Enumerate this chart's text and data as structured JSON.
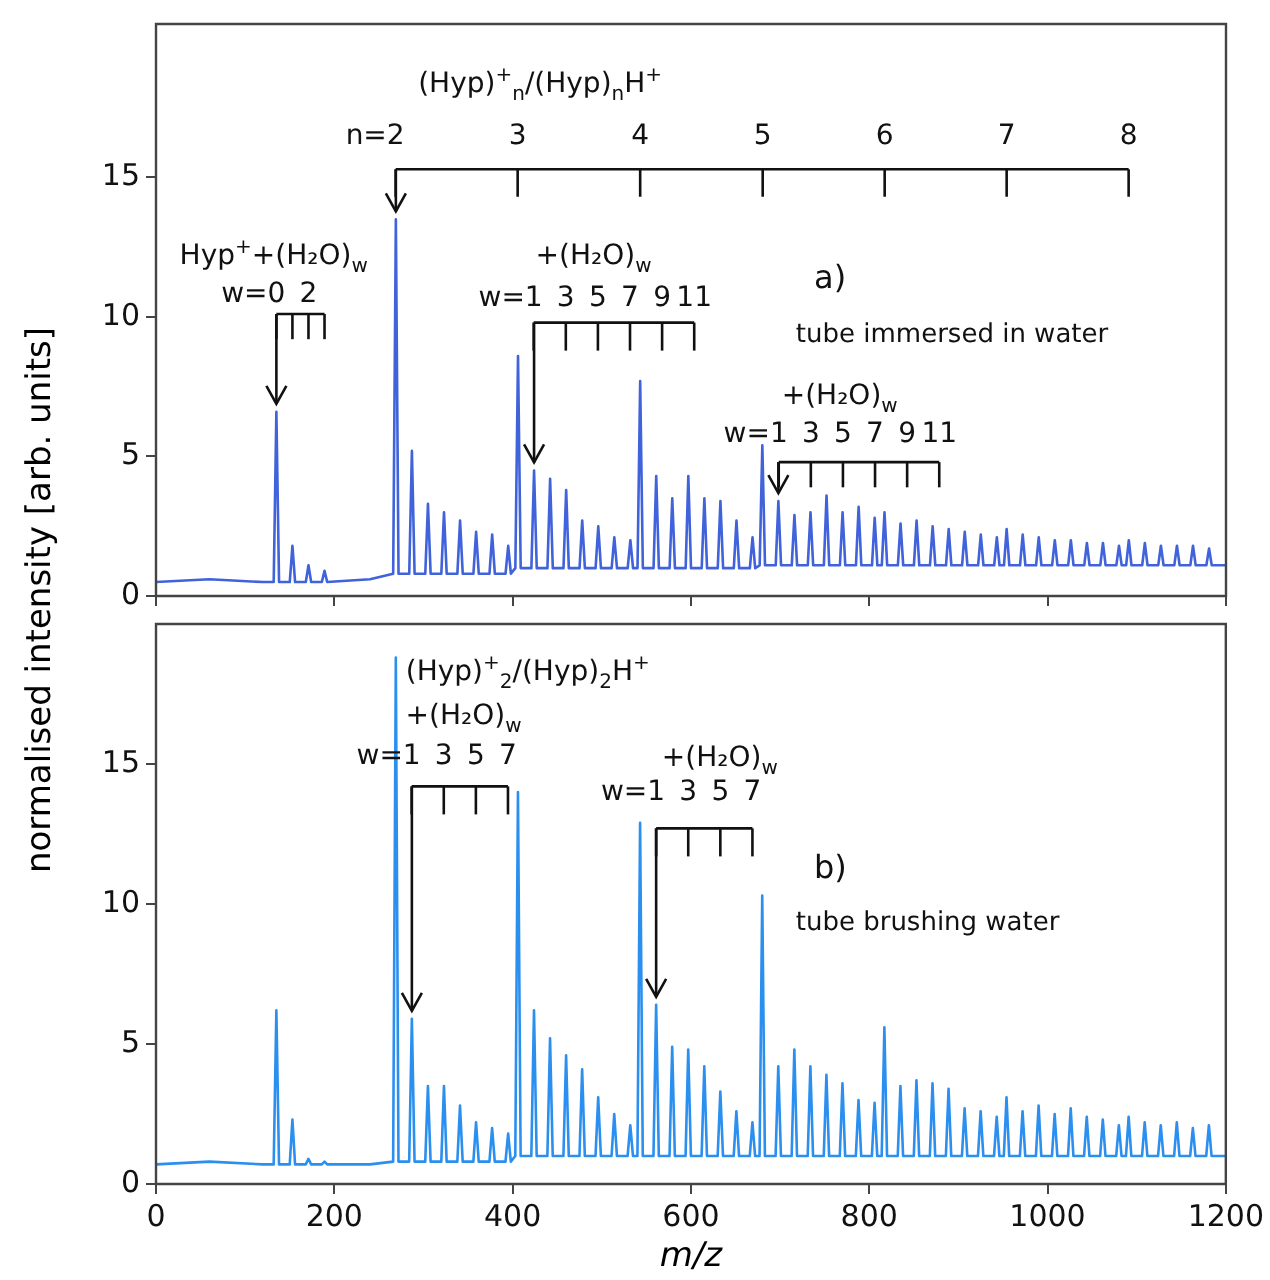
{
  "chart_data": [
    {
      "type": "line",
      "ylabel": "normalised intensity [arb. units]",
      "xlim": [
        0,
        1200
      ],
      "xticks": [
        0,
        200,
        400,
        600,
        800,
        1000,
        1200
      ],
      "ylim": [
        0,
        20.5
      ],
      "yticks": [
        0,
        5,
        10,
        15
      ],
      "tick_labels": "y",
      "grid": false,
      "legend": false,
      "x": [
        0,
        60,
        120,
        132,
        135,
        138,
        150,
        153,
        156,
        168,
        171,
        174,
        186,
        189,
        192,
        240,
        266,
        269,
        272,
        284,
        287,
        290,
        302,
        305,
        308,
        320,
        323,
        326,
        338,
        341,
        344,
        356,
        359,
        362,
        374,
        377,
        380,
        392,
        395,
        398,
        403,
        406,
        409,
        421,
        424,
        427,
        439,
        442,
        445,
        457,
        460,
        463,
        475,
        478,
        481,
        493,
        496,
        499,
        511,
        514,
        517,
        529,
        532,
        535,
        540,
        543,
        546,
        558,
        561,
        564,
        576,
        579,
        582,
        594,
        597,
        600,
        612,
        615,
        618,
        630,
        633,
        636,
        648,
        651,
        654,
        666,
        669,
        672,
        677,
        680,
        683,
        695,
        698,
        701,
        713,
        716,
        719,
        731,
        734,
        737,
        749,
        752,
        755,
        767,
        770,
        773,
        785,
        788,
        791,
        803,
        806,
        809,
        814,
        817,
        820,
        832,
        835,
        838,
        850,
        853,
        856,
        868,
        871,
        874,
        886,
        889,
        892,
        904,
        907,
        910,
        922,
        925,
        928,
        940,
        943,
        946,
        951,
        954,
        957,
        969,
        972,
        975,
        987,
        990,
        993,
        1005,
        1008,
        1011,
        1023,
        1026,
        1029,
        1041,
        1044,
        1047,
        1059,
        1062,
        1065,
        1077,
        1080,
        1083,
        1088,
        1091,
        1094,
        1106,
        1109,
        1112,
        1124,
        1127,
        1130,
        1142,
        1145,
        1148,
        1160,
        1163,
        1166,
        1178,
        1181,
        1184,
        1200
      ],
      "series": [
        {
          "color": "#4062da",
          "values": [
            0.5,
            0.6,
            0.5,
            0.5,
            6.6,
            0.5,
            0.5,
            1.8,
            0.5,
            0.5,
            1.1,
            0.5,
            0.5,
            0.9,
            0.5,
            0.6,
            0.8,
            13.5,
            0.8,
            0.8,
            5.2,
            0.8,
            0.8,
            3.3,
            0.8,
            0.8,
            3.0,
            0.8,
            0.8,
            2.7,
            0.8,
            0.8,
            2.3,
            0.8,
            0.8,
            2.2,
            0.8,
            0.8,
            1.8,
            0.8,
            1.0,
            8.6,
            1.0,
            1.0,
            4.5,
            1.0,
            1.0,
            4.2,
            1.0,
            1.0,
            3.8,
            1.0,
            1.0,
            2.7,
            1.0,
            1.0,
            2.5,
            1.0,
            1.0,
            2.1,
            1.0,
            1.0,
            2.0,
            1.0,
            1.0,
            7.7,
            1.0,
            1.0,
            4.3,
            1.0,
            1.0,
            3.5,
            1.0,
            1.0,
            4.3,
            1.0,
            1.0,
            3.5,
            1.0,
            1.0,
            3.4,
            1.0,
            1.0,
            2.7,
            1.0,
            1.0,
            2.1,
            1.0,
            1.1,
            5.4,
            1.1,
            1.1,
            3.4,
            1.1,
            1.1,
            2.9,
            1.1,
            1.1,
            3.0,
            1.1,
            1.1,
            3.6,
            1.1,
            1.1,
            3.0,
            1.1,
            1.1,
            3.2,
            1.1,
            1.1,
            2.8,
            1.1,
            1.1,
            3.0,
            1.1,
            1.1,
            2.6,
            1.1,
            1.1,
            2.7,
            1.1,
            1.1,
            2.5,
            1.1,
            1.1,
            2.4,
            1.1,
            1.1,
            2.3,
            1.1,
            1.1,
            2.2,
            1.1,
            1.1,
            2.1,
            1.1,
            1.1,
            2.4,
            1.1,
            1.1,
            2.2,
            1.1,
            1.1,
            2.1,
            1.1,
            1.1,
            2.0,
            1.1,
            1.1,
            2.0,
            1.1,
            1.1,
            1.9,
            1.1,
            1.1,
            1.9,
            1.1,
            1.1,
            1.8,
            1.1,
            1.1,
            2.0,
            1.1,
            1.1,
            1.9,
            1.1,
            1.1,
            1.8,
            1.1,
            1.1,
            1.8,
            1.1,
            1.1,
            1.8,
            1.1,
            1.1,
            1.7,
            1.1,
            1.1
          ]
        }
      ],
      "annotations": [
        "(Hyp)$^{+}$$_{n}$/(Hyp)$_{n}$H$^{+}$",
        {
          "text": "n=2",
          "x": 269,
          "y": 13.5
        },
        "3",
        "4",
        "5",
        "6",
        "7",
        "8",
        "Hyp$^{+}$+(H₂O)$_{w}$",
        {
          "text": "w=0",
          "x": 135,
          "y": 6.6
        },
        "2",
        "+(H₂O)$_{w}$",
        {
          "text": "w=1",
          "x": 424,
          "y": 4.5
        },
        "3",
        "5",
        "7",
        "9",
        "11",
        "+(H₂O)$_{w}$",
        {
          "text": "w=1",
          "x": 698,
          "y": 3.4
        },
        "3",
        "5",
        "7",
        "9",
        "11",
        "a)",
        "tube immersed in water"
      ]
    },
    {
      "type": "line",
      "xlabel": "m/z",
      "xlim": [
        0,
        1200
      ],
      "xticks": [
        0,
        200,
        400,
        600,
        800,
        1000,
        1200
      ],
      "ylim": [
        0,
        20
      ],
      "yticks": [
        0,
        5,
        10,
        15
      ],
      "grid": false,
      "legend": false,
      "x": [
        0,
        60,
        120,
        132,
        135,
        138,
        150,
        153,
        156,
        168,
        171,
        174,
        186,
        189,
        192,
        240,
        266,
        269,
        272,
        284,
        287,
        290,
        302,
        305,
        308,
        320,
        323,
        326,
        338,
        341,
        344,
        356,
        359,
        362,
        374,
        377,
        380,
        392,
        395,
        398,
        403,
        406,
        409,
        421,
        424,
        427,
        439,
        442,
        445,
        457,
        460,
        463,
        475,
        478,
        481,
        493,
        496,
        499,
        511,
        514,
        517,
        529,
        532,
        535,
        540,
        543,
        546,
        558,
        561,
        564,
        576,
        579,
        582,
        594,
        597,
        600,
        612,
        615,
        618,
        630,
        633,
        636,
        648,
        651,
        654,
        666,
        669,
        672,
        677,
        680,
        683,
        695,
        698,
        701,
        713,
        716,
        719,
        731,
        734,
        737,
        749,
        752,
        755,
        767,
        770,
        773,
        785,
        788,
        791,
        803,
        806,
        809,
        814,
        817,
        820,
        832,
        835,
        838,
        850,
        853,
        856,
        868,
        871,
        874,
        886,
        889,
        892,
        904,
        907,
        910,
        922,
        925,
        928,
        940,
        943,
        946,
        951,
        954,
        957,
        969,
        972,
        975,
        987,
        990,
        993,
        1005,
        1008,
        1011,
        1023,
        1026,
        1029,
        1041,
        1044,
        1047,
        1059,
        1062,
        1065,
        1077,
        1080,
        1083,
        1088,
        1091,
        1094,
        1106,
        1109,
        1112,
        1124,
        1127,
        1130,
        1142,
        1145,
        1148,
        1160,
        1163,
        1166,
        1178,
        1181,
        1184,
        1200
      ],
      "series": [
        {
          "color": "#2b8ff0",
          "values": [
            0.7,
            0.8,
            0.7,
            0.7,
            6.2,
            0.7,
            0.7,
            2.3,
            0.7,
            0.7,
            0.9,
            0.7,
            0.7,
            0.8,
            0.7,
            0.7,
            0.8,
            18.8,
            0.8,
            0.8,
            5.9,
            0.8,
            0.8,
            3.5,
            0.8,
            0.8,
            3.5,
            0.8,
            0.8,
            2.8,
            0.8,
            0.8,
            2.2,
            0.8,
            0.8,
            2.0,
            0.8,
            0.8,
            1.8,
            0.8,
            1.0,
            14.0,
            1.0,
            1.0,
            6.2,
            1.0,
            1.0,
            5.2,
            1.0,
            1.0,
            4.6,
            1.0,
            1.0,
            4.1,
            1.0,
            1.0,
            3.1,
            1.0,
            1.0,
            2.5,
            1.0,
            1.0,
            2.1,
            1.0,
            1.0,
            12.9,
            1.0,
            1.0,
            6.4,
            1.0,
            1.0,
            4.9,
            1.0,
            1.0,
            4.8,
            1.0,
            1.0,
            4.2,
            1.0,
            1.0,
            3.3,
            1.0,
            1.0,
            2.6,
            1.0,
            1.0,
            2.2,
            1.0,
            1.0,
            10.3,
            1.0,
            1.0,
            4.2,
            1.0,
            1.0,
            4.8,
            1.0,
            1.0,
            4.2,
            1.0,
            1.0,
            3.9,
            1.0,
            1.0,
            3.6,
            1.0,
            1.0,
            3.0,
            1.0,
            1.0,
            2.9,
            1.0,
            1.0,
            5.6,
            1.0,
            1.0,
            3.5,
            1.0,
            1.0,
            3.7,
            1.0,
            1.0,
            3.6,
            1.0,
            1.0,
            3.4,
            1.0,
            1.0,
            2.7,
            1.0,
            1.0,
            2.6,
            1.0,
            1.0,
            2.4,
            1.0,
            1.0,
            3.1,
            1.0,
            1.0,
            2.6,
            1.0,
            1.0,
            2.8,
            1.0,
            1.0,
            2.5,
            1.0,
            1.0,
            2.7,
            1.0,
            1.0,
            2.4,
            1.0,
            1.0,
            2.3,
            1.0,
            1.0,
            2.1,
            1.0,
            1.0,
            2.4,
            1.0,
            1.0,
            2.2,
            1.0,
            1.0,
            2.1,
            1.0,
            1.0,
            2.2,
            1.0,
            1.0,
            2.0,
            1.0,
            1.0,
            2.1,
            1.0,
            1.0
          ]
        }
      ],
      "annotations": [
        "(Hyp)$^{+}$$_{2}$/(Hyp)$_{2}$H$^{+}$",
        "+(H₂O)$_{w}$",
        {
          "text": "w=1",
          "x": 287,
          "y": 5.9
        },
        "3",
        "5",
        "7",
        "+(H₂O)$_{w}$",
        {
          "text": "w=1",
          "x": 561,
          "y": 6.4
        },
        "3",
        "5",
        "7",
        "b)",
        "tube brushing water"
      ]
    }
  ]
}
